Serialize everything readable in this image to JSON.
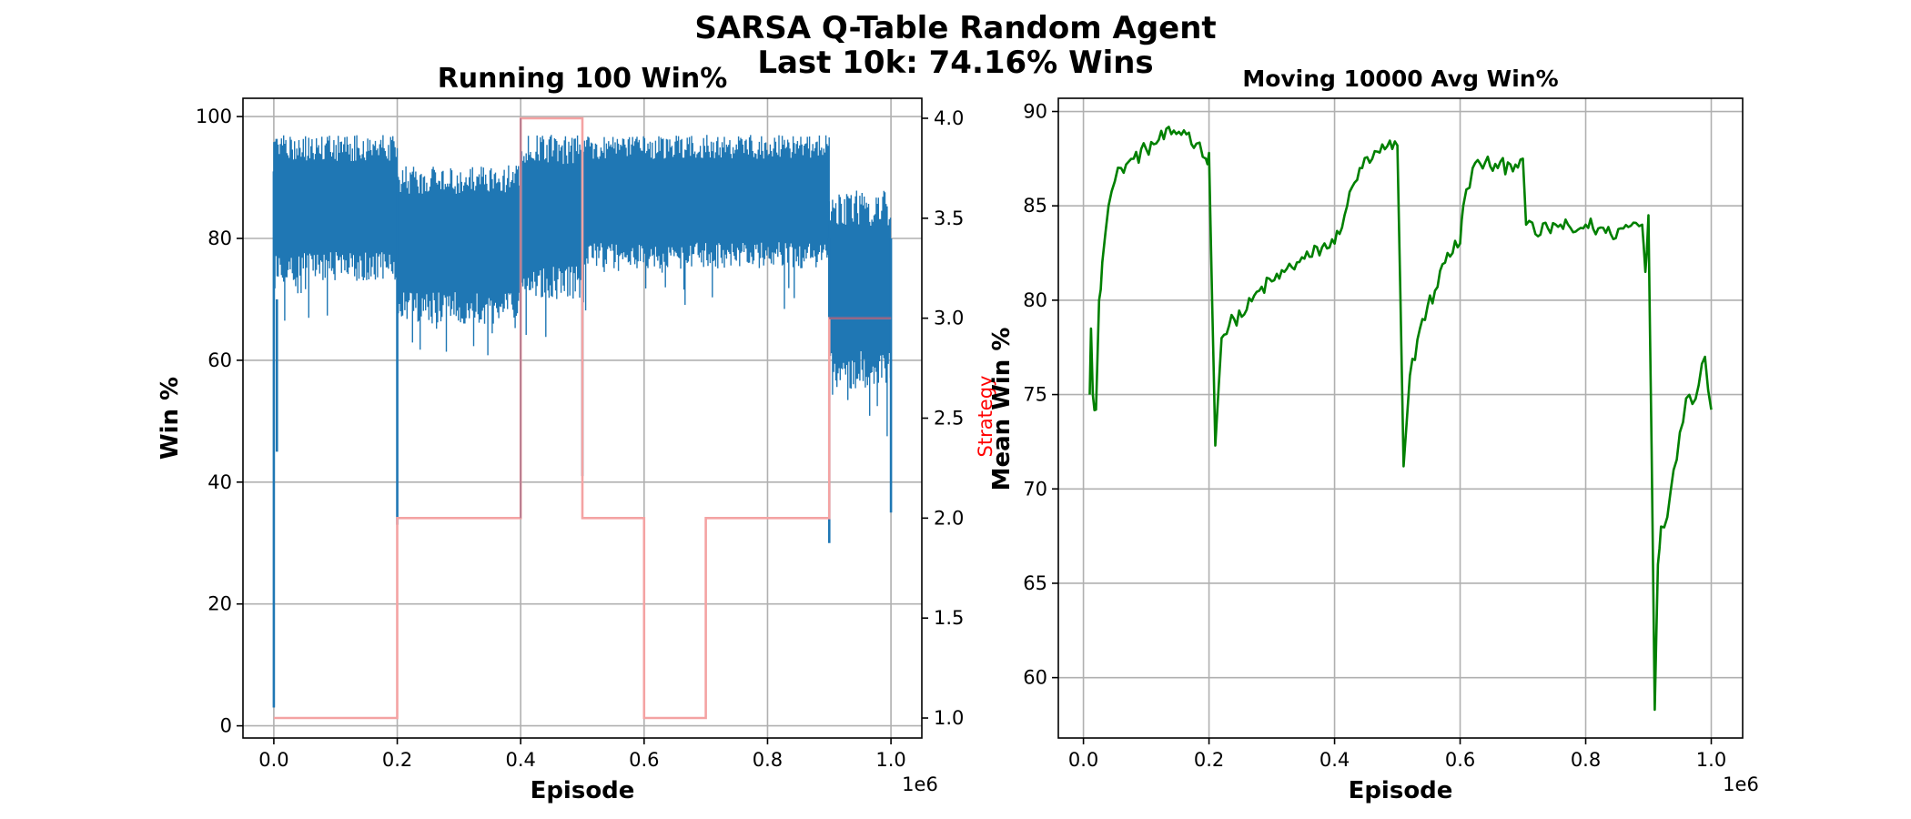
{
  "figure": {
    "title_line1": "SARSA Q-Table Random Agent",
    "title_line2": "Last 10k: 74.16% Wins"
  },
  "colors": {
    "win_line": "#1f77b4",
    "strategy_line": "#f4a3a3",
    "overlap_line": "#6b4f7a",
    "avg_line": "#008000",
    "strategy_label": "#ff0000",
    "grid": "#b0b0b0"
  },
  "chart_data": [
    {
      "type": "line",
      "title": "Running 100 Win%",
      "xlabel": "Episode",
      "ylabel": "Win %",
      "y2label": "Strategy",
      "x_multiplier_label": "1e6",
      "xlim": [
        -0.05,
        1.05
      ],
      "ylim": [
        -2,
        103
      ],
      "y2lim": [
        0.9,
        4.1
      ],
      "x_ticks": [
        0.0,
        0.2,
        0.4,
        0.6,
        0.8,
        1.0
      ],
      "x_tick_labels": [
        "0.0",
        "0.2",
        "0.4",
        "0.6",
        "0.8",
        "1.0"
      ],
      "y_ticks": [
        0,
        20,
        40,
        60,
        80,
        100
      ],
      "y_tick_labels": [
        "0",
        "20",
        "40",
        "60",
        "80",
        "100"
      ],
      "y2_ticks": [
        1.0,
        1.5,
        2.0,
        2.5,
        3.0,
        3.5,
        4.0
      ],
      "y2_tick_labels": [
        "1.0",
        "1.5",
        "2.0",
        "2.5",
        "3.0",
        "3.5",
        "4.0"
      ],
      "grid": true,
      "series": [
        {
          "axis": "left",
          "style": "band",
          "segments": [
            {
              "x": [
                0.0,
                0.2
              ],
              "low": 73,
              "high": 97
            },
            {
              "x": [
                0.2,
                0.4
              ],
              "low": 66,
              "high": 92
            },
            {
              "x": [
                0.4,
                0.5
              ],
              "low": 70,
              "high": 97
            },
            {
              "x": [
                0.5,
                0.9
              ],
              "low": 75,
              "high": 97
            },
            {
              "x": [
                0.9,
                1.0
              ],
              "low": 55,
              "high": 88
            }
          ],
          "spikes": [
            {
              "x": 0.0,
              "from": 91,
              "to": 3
            },
            {
              "x": 0.005,
              "from": 70,
              "to": 45
            },
            {
              "x": 0.2,
              "from": 90,
              "to": 33
            },
            {
              "x": 0.5,
              "from": 90,
              "to": 41
            },
            {
              "x": 0.9,
              "from": 80,
              "to": 30
            },
            {
              "x": 1.0,
              "from": 80,
              "to": 35
            }
          ]
        },
        {
          "axis": "right",
          "style": "step",
          "x": [
            0.0,
            0.2,
            0.2,
            0.4,
            0.4,
            0.5,
            0.5,
            0.6,
            0.6,
            0.7,
            0.7,
            0.9,
            0.9,
            1.0
          ],
          "y": [
            1.0,
            1.0,
            2.0,
            2.0,
            4.0,
            4.0,
            2.0,
            2.0,
            1.0,
            1.0,
            2.0,
            2.0,
            3.0,
            3.0
          ]
        }
      ]
    },
    {
      "type": "line",
      "title": "Moving 10000 Avg Win%",
      "xlabel": "Episode",
      "ylabel": "Mean Win %",
      "x_multiplier_label": "1e6",
      "xlim": [
        -0.04,
        1.05
      ],
      "ylim": [
        56.8,
        90.7
      ],
      "x_ticks": [
        0.0,
        0.2,
        0.4,
        0.6,
        0.8,
        1.0
      ],
      "x_tick_labels": [
        "0.0",
        "0.2",
        "0.4",
        "0.6",
        "0.8",
        "1.0"
      ],
      "y_ticks": [
        60,
        65,
        70,
        75,
        80,
        85,
        90
      ],
      "y_tick_labels": [
        "60",
        "65",
        "70",
        "75",
        "80",
        "85",
        "90"
      ],
      "grid": true,
      "series": [
        {
          "x": [
            0.01,
            0.012,
            0.015,
            0.02,
            0.025,
            0.03,
            0.04,
            0.05,
            0.06,
            0.08,
            0.1,
            0.12,
            0.14,
            0.16,
            0.18,
            0.195,
            0.2,
            0.205,
            0.21,
            0.22,
            0.24,
            0.26,
            0.28,
            0.3,
            0.32,
            0.34,
            0.36,
            0.38,
            0.4,
            0.42,
            0.44,
            0.46,
            0.48,
            0.5,
            0.505,
            0.51,
            0.52,
            0.54,
            0.56,
            0.58,
            0.6,
            0.605,
            0.62,
            0.64,
            0.66,
            0.68,
            0.7,
            0.705,
            0.72,
            0.74,
            0.76,
            0.78,
            0.8,
            0.82,
            0.84,
            0.86,
            0.88,
            0.89,
            0.895,
            0.9,
            0.905,
            0.91,
            0.915,
            0.92,
            0.93,
            0.94,
            0.95,
            0.96,
            0.97,
            0.98,
            0.99,
            1.0
          ],
          "y": [
            75,
            78.5,
            75,
            74.2,
            80,
            82,
            85,
            86.3,
            87,
            87.5,
            88,
            88.5,
            88.8,
            89,
            88.3,
            87.5,
            87.8,
            80,
            72.3,
            78,
            79,
            79.5,
            80.5,
            81,
            81.5,
            82,
            82.3,
            82.8,
            83,
            85,
            87,
            87.5,
            88,
            88.2,
            80,
            71.2,
            76,
            79,
            80.5,
            82.5,
            83,
            85,
            87,
            87.3,
            87,
            87.2,
            87.5,
            84,
            83.5,
            83.8,
            84,
            83.6,
            84,
            83.8,
            83.5,
            83.8,
            84.1,
            84,
            81.5,
            84.5,
            72,
            58.3,
            66,
            68,
            68.5,
            71,
            73,
            74.8,
            74.5,
            75.5,
            77,
            74.2
          ]
        }
      ]
    }
  ]
}
